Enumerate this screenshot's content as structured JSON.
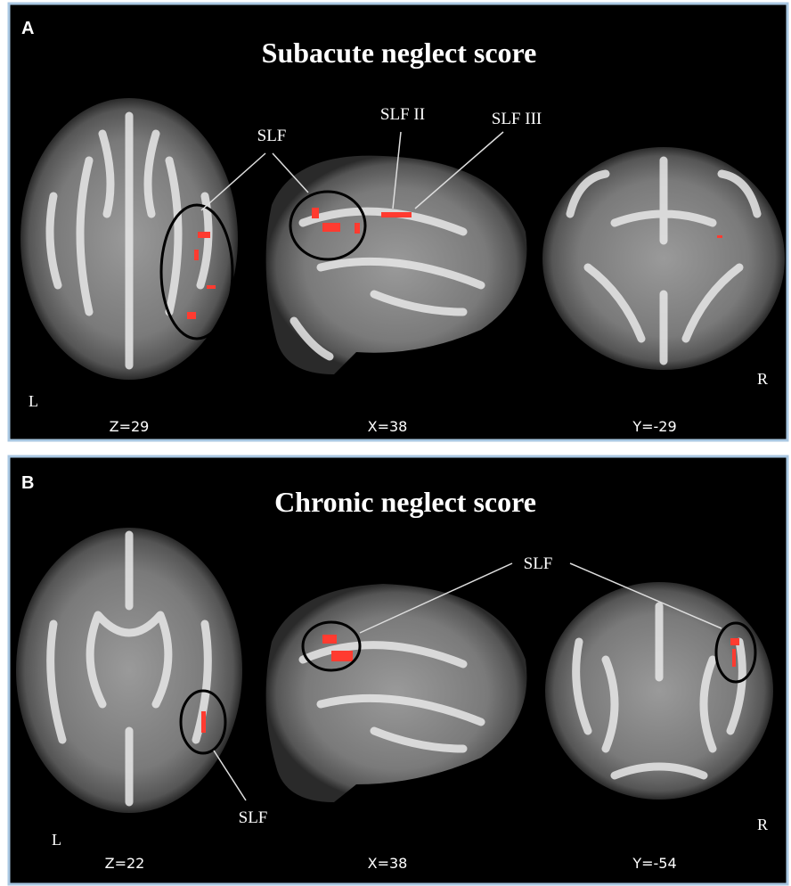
{
  "panels": [
    {
      "label": "A",
      "title": "Subacute neglect score",
      "slices": [
        "Z=29",
        "X=38",
        "Y=-29"
      ],
      "annotations": [
        "SLF",
        "SLF II",
        "SLF III"
      ],
      "left": "L",
      "right": "R"
    },
    {
      "label": "B",
      "title": "Chronic neglect score",
      "slices": [
        "Z=22",
        "X=38",
        "Y=-54"
      ],
      "annotations": [
        "SLF",
        "SLF"
      ],
      "left": "L",
      "right": "R"
    }
  ]
}
